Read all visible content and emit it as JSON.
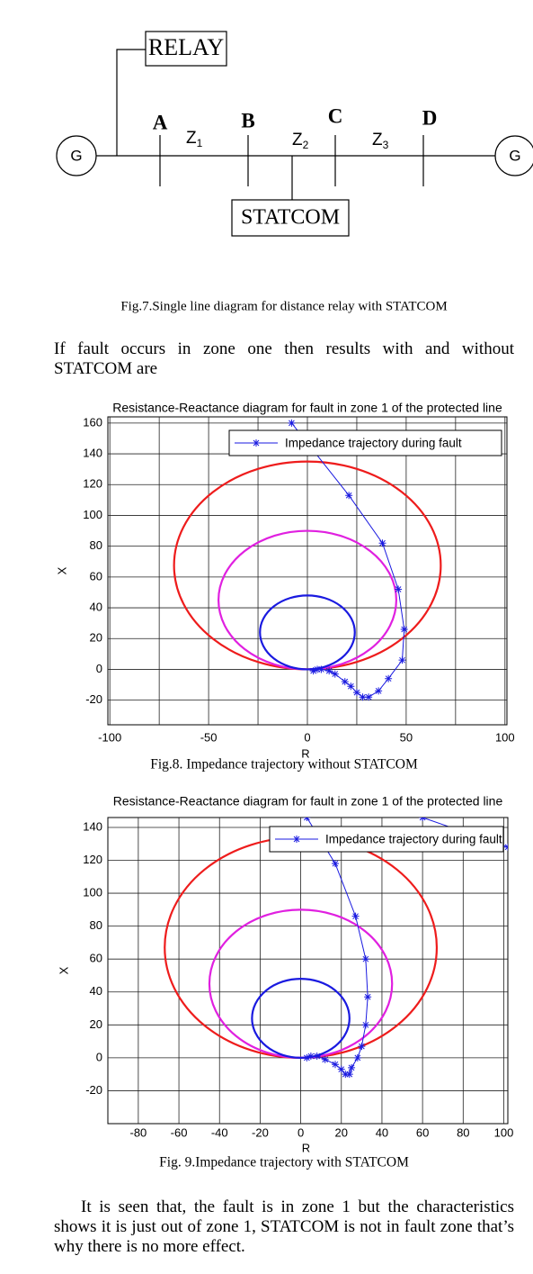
{
  "diagram": {
    "relay": "RELAY",
    "generators": [
      "G",
      "G"
    ],
    "buses": [
      "A",
      "B",
      "C",
      "D"
    ],
    "zones": [
      {
        "label": "Z",
        "sub": "1"
      },
      {
        "label": "Z",
        "sub": "2"
      },
      {
        "label": "Z",
        "sub": "3"
      }
    ],
    "statcom": "STATCOM",
    "caption": "Fig.7.Single line diagram for distance relay with STATCOM"
  },
  "paragraphs": [
    "If fault occurs in zone one then results with and without STATCOM are",
    "It is seen that, the fault is in zone 1 but the characteristics shows it is just out of zone 1, STATCOM is not in fault zone that’s why there is no more effect."
  ],
  "chart_data": [
    {
      "type": "line",
      "title": "Resistance-Reactance diagram for fault in zone 1 of the protected line",
      "x_label": "R",
      "y_label": "X",
      "caption": "Fig.8. Impedance trajectory without STATCOM",
      "xlim": [
        -101,
        101
      ],
      "ylim": [
        -36,
        164
      ],
      "xticks": [
        -100,
        -50,
        0,
        50,
        100
      ],
      "xminor": [
        -75,
        -25,
        25,
        75
      ],
      "yticks": [
        -20,
        0,
        20,
        40,
        60,
        80,
        100,
        120,
        140,
        160
      ],
      "grid": true,
      "legend": "top-right",
      "circles": [
        {
          "color": "#ee1c1c",
          "cx": 0,
          "cy": 67.5,
          "r": 67.5
        },
        {
          "color": "#e020e0",
          "cx": 0,
          "cy": 45,
          "r": 45
        },
        {
          "color": "#1a1ae0",
          "cx": 0,
          "cy": 24,
          "r": 24
        }
      ],
      "series": [
        {
          "name": "Impedance trajectory during fault",
          "color": "#1a1ae0",
          "x": [
            -8,
            21,
            38,
            46,
            49,
            48,
            41,
            36,
            31,
            28,
            25,
            22,
            19,
            14,
            11,
            7,
            5,
            3
          ],
          "values": [
            160,
            113,
            82,
            52,
            26,
            6,
            -6,
            -14,
            -18,
            -18,
            -15,
            -11,
            -8,
            -3,
            -1,
            0,
            0,
            -1
          ]
        }
      ]
    },
    {
      "type": "line",
      "title": "Resistance-Reactance diagram for fault in zone 1 of the protected line",
      "x_label": "R",
      "y_label": "X",
      "caption": "Fig. 9.Impedance trajectory with STATCOM",
      "xlim": [
        -95,
        102
      ],
      "ylim": [
        -40,
        146
      ],
      "xticks": [
        -80,
        -60,
        -40,
        -20,
        0,
        20,
        40,
        60,
        80,
        100
      ],
      "yticks": [
        -20,
        0,
        20,
        40,
        60,
        80,
        100,
        120,
        140
      ],
      "grid": true,
      "legend": "top-right",
      "circles": [
        {
          "color": "#ee1c1c",
          "cx": 0,
          "cy": 67,
          "r": 67
        },
        {
          "color": "#e020e0",
          "cx": 0,
          "cy": 45,
          "r": 45
        },
        {
          "color": "#1a1ae0",
          "cx": 0,
          "cy": 24,
          "r": 24
        }
      ],
      "series": [
        {
          "name": "Impedance trajectory during fault",
          "color": "#1a1ae0",
          "x": [
            60,
            102,
            null,
            3,
            17,
            27,
            32,
            33,
            32,
            30,
            28,
            25,
            24,
            22,
            20,
            17,
            12,
            8,
            5,
            3
          ],
          "values": [
            146,
            128,
            null,
            146,
            118,
            86,
            60,
            37,
            20,
            7,
            0,
            -6,
            -10,
            -10,
            -7,
            -4,
            -1,
            1,
            1,
            0
          ]
        }
      ]
    }
  ]
}
